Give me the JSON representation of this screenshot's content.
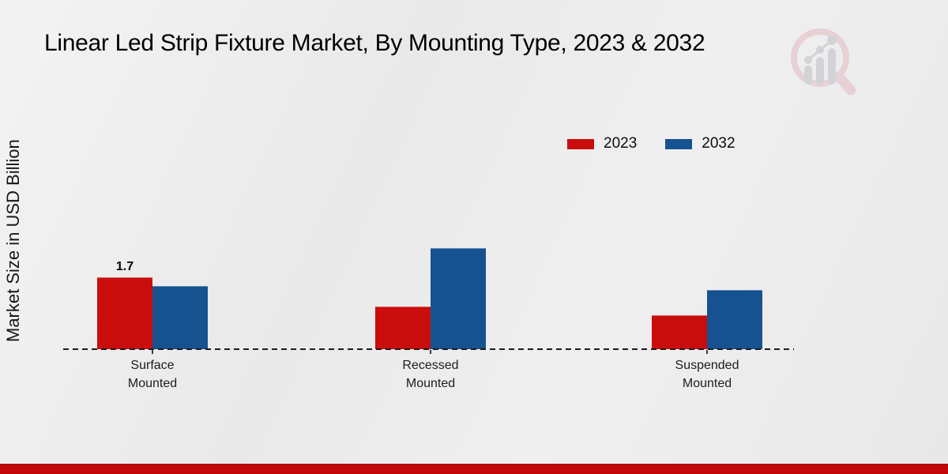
{
  "title": "Linear Led Strip Fixture Market, By Mounting Type, 2023 & 2032",
  "y_axis_label": "Market Size in USD Billion",
  "legend": {
    "position": "top-right",
    "items": [
      {
        "label": "2023",
        "color": "#c90d0d"
      },
      {
        "label": "2032",
        "color": "#175290"
      }
    ]
  },
  "colors": {
    "series_2023": "#c90d0d",
    "series_2032": "#175290",
    "footer_bar": "#c10707",
    "baseline": "#1c1c1c",
    "background": "#ebebeb",
    "logo_ring": "#e7ced2",
    "logo_bars": "#ced0d4"
  },
  "footer": {
    "bar_color": "#c10707"
  },
  "logo_name": "magnifier-bar-chart-logo",
  "chart_data": {
    "type": "bar",
    "title": "Linear Led Strip Fixture Market, By Mounting Type, 2023 & 2032",
    "xlabel": "",
    "ylabel": "Market Size in USD Billion",
    "categories": [
      "Surface Mounted",
      "Recessed Mounted",
      "Suspended Mounted"
    ],
    "series": [
      {
        "name": "2023",
        "color": "#c90d0d",
        "values": [
          1.7,
          1.0,
          0.8
        ]
      },
      {
        "name": "2032",
        "color": "#175290",
        "values": [
          1.5,
          2.4,
          1.4
        ]
      }
    ],
    "annotations": [
      {
        "series_index": 0,
        "category_index": 0,
        "text": "1.7"
      }
    ],
    "ylim": [
      0,
      2.6
    ],
    "grid": false,
    "y_ticks_visible": false,
    "legend_position": "top-right",
    "baseline_style": "dashed"
  }
}
